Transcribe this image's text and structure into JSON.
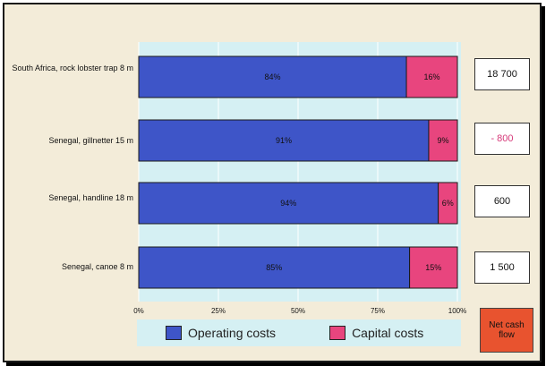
{
  "chart_data": {
    "type": "bar",
    "orientation": "horizontal",
    "stacked": true,
    "percent_stacked": true,
    "categories": [
      "South Africa, rock lobster trap 8 m",
      "Senegal, gillnetter 15 m",
      "Senegal, handline 18 m",
      "Senegal, canoe 8 m"
    ],
    "series": [
      {
        "name": "Operating costs",
        "values": [
          84,
          91,
          94,
          85
        ],
        "labels": [
          "84%",
          "91%",
          "94%",
          "85%"
        ],
        "color": "#3e55c8"
      },
      {
        "name": "Capital costs",
        "values": [
          16,
          9,
          6,
          15
        ],
        "labels": [
          "16%",
          "9%",
          "6%",
          "15%"
        ],
        "color": "#e8457e"
      }
    ],
    "xlim": [
      0,
      100
    ],
    "xticks": [
      0,
      25,
      50,
      75,
      100
    ],
    "xtick_labels": [
      "0%",
      "25%",
      "50%",
      "75%",
      "100%"
    ],
    "net_cash_flow": {
      "title": "Net cash flow",
      "values": [
        "18 700",
        "- 800",
        "600",
        "1 500"
      ],
      "title_color": "#e8532f"
    },
    "legend_position": "bottom"
  }
}
